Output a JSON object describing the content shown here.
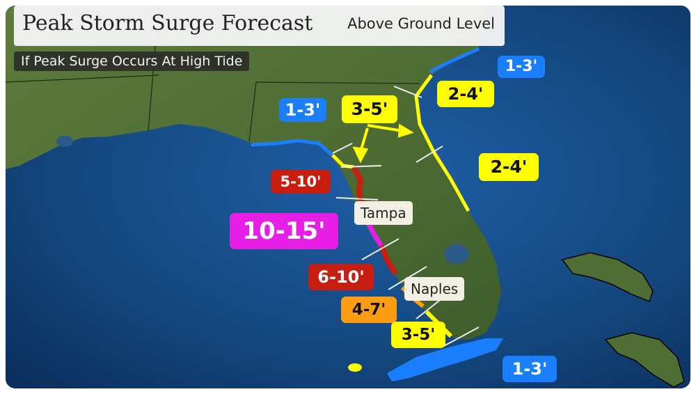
{
  "header": {
    "title": "Peak Storm Surge Forecast",
    "subtitle": "Above Ground Level",
    "note": "If Peak Surge Occurs At High Tide"
  },
  "legend_colors": {
    "1-3": "#1a7fff",
    "2-4 / 3-5": "#ffff00",
    "4-7": "#ff9d12",
    "5-10 / 6-10": "#c81e0f",
    "10-15": "#e61ee6"
  },
  "surge_labels": [
    {
      "id": "panhandle",
      "text": "1-3'",
      "color": "blue"
    },
    {
      "id": "ne-atlantic",
      "text": "1-3'",
      "color": "blue"
    },
    {
      "id": "big-bend",
      "text": "3-5'",
      "color": "yellow"
    },
    {
      "id": "ne-coast",
      "text": "2-4'",
      "color": "yellow"
    },
    {
      "id": "east-coast",
      "text": "2-4'",
      "color": "yellow"
    },
    {
      "id": "nature-coast",
      "text": "5-10'",
      "color": "red"
    },
    {
      "id": "tampa-bay",
      "text": "10-15'",
      "color": "magenta"
    },
    {
      "id": "sarasota",
      "text": "6-10'",
      "color": "red"
    },
    {
      "id": "fort-myers",
      "text": "4-7'",
      "color": "orange"
    },
    {
      "id": "sw-coast",
      "text": "3-5'",
      "color": "yellow"
    },
    {
      "id": "keys",
      "text": "1-3'",
      "color": "blue"
    }
  ],
  "cities": [
    {
      "name": "Tampa"
    },
    {
      "name": "Naples"
    }
  ]
}
